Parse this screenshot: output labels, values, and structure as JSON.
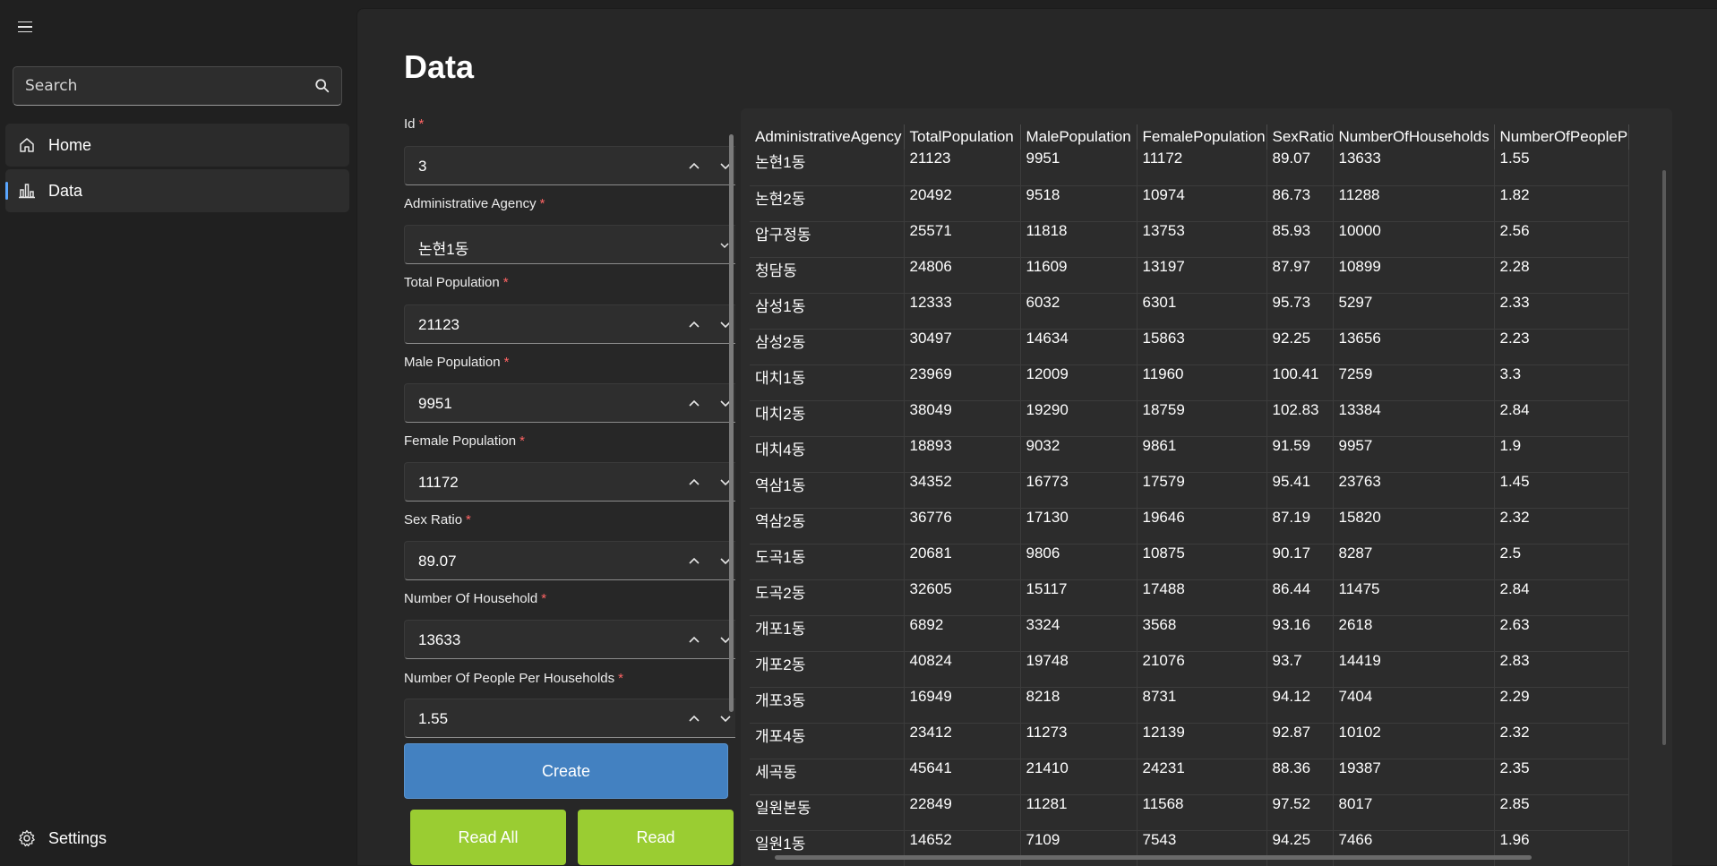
{
  "sidebar": {
    "search_placeholder": "Search",
    "items": [
      {
        "label": "Home",
        "icon": "home-icon"
      },
      {
        "label": "Data",
        "icon": "bar-chart-icon"
      }
    ],
    "settings_label": "Settings"
  },
  "page": {
    "title": "Data"
  },
  "form": {
    "fields": [
      {
        "label": "Id",
        "value": "3",
        "type": "number"
      },
      {
        "label": "Administrative Agency",
        "value": "논현1동",
        "type": "combo"
      },
      {
        "label": "Total Population",
        "value": "21123",
        "type": "number"
      },
      {
        "label": "Male Population",
        "value": "9951",
        "type": "number"
      },
      {
        "label": "Female Population",
        "value": "11172",
        "type": "number"
      },
      {
        "label": "Sex Ratio",
        "value": "89.07",
        "type": "number"
      },
      {
        "label": "Number Of Household",
        "value": "13633",
        "type": "number"
      },
      {
        "label": "Number Of People Per Households",
        "value": "1.55",
        "type": "number"
      }
    ],
    "required_mark": "*",
    "buttons": {
      "create": "Create",
      "read_all": "Read All",
      "read": "Read"
    }
  },
  "grid": {
    "columns": [
      "AdministrativeAgency",
      "TotalPopulation",
      "MalePopulation",
      "FemalePopulation",
      "SexRatio",
      "NumberOfHouseholds",
      "NumberOfPeopleP"
    ],
    "rows": [
      [
        "논현1동",
        "21123",
        "9951",
        "11172",
        "89.07",
        "13633",
        "1.55"
      ],
      [
        "논현2동",
        "20492",
        "9518",
        "10974",
        "86.73",
        "11288",
        "1.82"
      ],
      [
        "압구정동",
        "25571",
        "11818",
        "13753",
        "85.93",
        "10000",
        "2.56"
      ],
      [
        "청담동",
        "24806",
        "11609",
        "13197",
        "87.97",
        "10899",
        "2.28"
      ],
      [
        "삼성1동",
        "12333",
        "6032",
        "6301",
        "95.73",
        "5297",
        "2.33"
      ],
      [
        "삼성2동",
        "30497",
        "14634",
        "15863",
        "92.25",
        "13656",
        "2.23"
      ],
      [
        "대치1동",
        "23969",
        "12009",
        "11960",
        "100.41",
        "7259",
        "3.3"
      ],
      [
        "대치2동",
        "38049",
        "19290",
        "18759",
        "102.83",
        "13384",
        "2.84"
      ],
      [
        "대치4동",
        "18893",
        "9032",
        "9861",
        "91.59",
        "9957",
        "1.9"
      ],
      [
        "역삼1동",
        "34352",
        "16773",
        "17579",
        "95.41",
        "23763",
        "1.45"
      ],
      [
        "역삼2동",
        "36776",
        "17130",
        "19646",
        "87.19",
        "15820",
        "2.32"
      ],
      [
        "도곡1동",
        "20681",
        "9806",
        "10875",
        "90.17",
        "8287",
        "2.5"
      ],
      [
        "도곡2동",
        "32605",
        "15117",
        "17488",
        "86.44",
        "11475",
        "2.84"
      ],
      [
        "개포1동",
        "6892",
        "3324",
        "3568",
        "93.16",
        "2618",
        "2.63"
      ],
      [
        "개포2동",
        "40824",
        "19748",
        "21076",
        "93.7",
        "14419",
        "2.83"
      ],
      [
        "개포3동",
        "16949",
        "8218",
        "8731",
        "94.12",
        "7404",
        "2.29"
      ],
      [
        "개포4동",
        "23412",
        "11273",
        "12139",
        "92.87",
        "10102",
        "2.32"
      ],
      [
        "세곡동",
        "45641",
        "21410",
        "24231",
        "88.36",
        "19387",
        "2.35"
      ],
      [
        "일원본동",
        "22849",
        "11281",
        "11568",
        "97.52",
        "8017",
        "2.85"
      ],
      [
        "일원1동",
        "14652",
        "7109",
        "7543",
        "94.25",
        "7466",
        "1.96"
      ]
    ]
  },
  "colors": {
    "accent": "#5aa6ff",
    "create_button": "#4381c1",
    "read_button": "#9acd32",
    "required": "#ff6464"
  }
}
